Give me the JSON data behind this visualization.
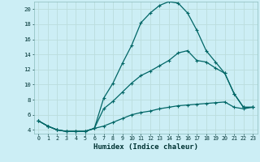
{
  "xlabel": "Humidex (Indice chaleur)",
  "background_color": "#cceef5",
  "grid_color": "#bbdddd",
  "line_color": "#006666",
  "xlim": [
    -0.5,
    23.5
  ],
  "ylim": [
    3.5,
    21.0
  ],
  "xticks": [
    0,
    1,
    2,
    3,
    4,
    5,
    6,
    7,
    8,
    9,
    10,
    11,
    12,
    13,
    14,
    15,
    16,
    17,
    18,
    19,
    20,
    21,
    22,
    23
  ],
  "yticks": [
    4,
    6,
    8,
    10,
    12,
    14,
    16,
    18,
    20
  ],
  "series1_x": [
    0,
    1,
    2,
    3,
    4,
    5,
    6,
    7,
    8,
    9,
    10,
    11,
    12,
    13,
    14,
    15,
    16,
    17,
    18,
    19,
    20,
    21,
    22,
    23
  ],
  "series1_y": [
    5.2,
    4.5,
    4.0,
    3.8,
    3.8,
    3.8,
    4.2,
    8.2,
    10.2,
    12.8,
    15.2,
    18.2,
    19.5,
    20.5,
    21.0,
    20.8,
    19.5,
    17.2,
    14.5,
    13.0,
    11.5,
    8.8,
    7.0,
    7.0
  ],
  "series2_x": [
    0,
    1,
    2,
    3,
    4,
    5,
    6,
    7,
    8,
    9,
    10,
    11,
    12,
    13,
    14,
    15,
    16,
    17,
    18,
    19,
    20,
    21,
    22,
    23
  ],
  "series2_y": [
    5.2,
    4.5,
    4.0,
    3.8,
    3.8,
    3.8,
    4.2,
    6.8,
    7.8,
    9.0,
    10.2,
    11.2,
    11.8,
    12.5,
    13.2,
    14.2,
    14.5,
    13.2,
    13.0,
    12.2,
    11.5,
    8.8,
    7.0,
    7.0
  ],
  "series3_x": [
    0,
    1,
    2,
    3,
    4,
    5,
    6,
    7,
    8,
    9,
    10,
    11,
    12,
    13,
    14,
    15,
    16,
    17,
    18,
    19,
    20,
    21,
    22,
    23
  ],
  "series3_y": [
    5.2,
    4.5,
    4.0,
    3.8,
    3.8,
    3.8,
    4.2,
    4.5,
    5.0,
    5.5,
    6.0,
    6.3,
    6.5,
    6.8,
    7.0,
    7.2,
    7.3,
    7.4,
    7.5,
    7.6,
    7.7,
    7.0,
    6.8,
    7.0
  ]
}
